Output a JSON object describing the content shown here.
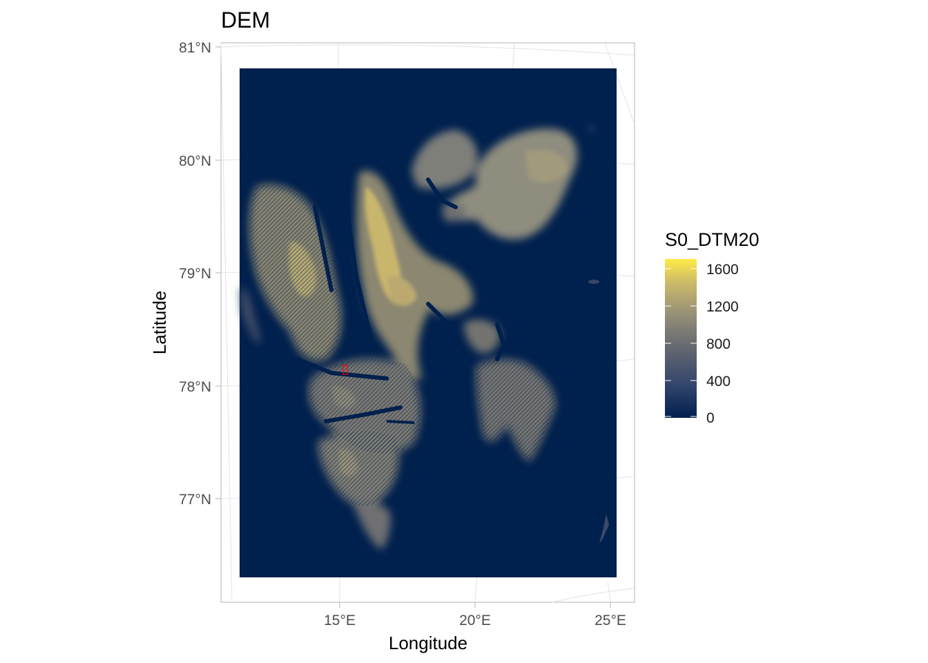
{
  "map": {
    "title": "DEM",
    "x_label": "Longitude",
    "y_label": "Latitude",
    "lat_ticks": [
      "81°N",
      "80°N",
      "79°N",
      "78°N",
      "77°N"
    ],
    "lon_ticks": [
      "15°E",
      "20°E",
      "25°E"
    ],
    "legend": {
      "title": "S0_DTM20",
      "ticks": [
        "1600",
        "1200",
        "800",
        "400",
        "0"
      ],
      "min": 0,
      "max": 1700,
      "colors": [
        "#00204d",
        "#31446b",
        "#666970",
        "#958f78",
        "#cbba69",
        "#ffea46"
      ]
    },
    "raster_background": "#00204d",
    "highlight_box_color": "#ff0000",
    "grid": true
  }
}
